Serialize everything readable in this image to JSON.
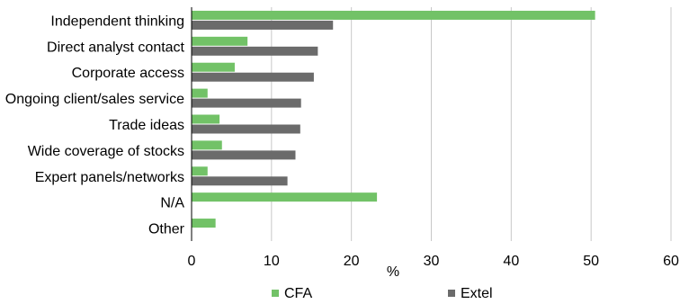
{
  "chart_data": {
    "type": "bar",
    "orientation": "horizontal",
    "categories": [
      "Independent thinking",
      "Direct analyst contact",
      "Corporate access",
      "Ongoing client/sales service",
      "Trade ideas",
      "Wide coverage of stocks",
      "Expert panels/networks",
      "N/A",
      "Other"
    ],
    "series": [
      {
        "name": "CFA",
        "color": "#72c267",
        "values": [
          50.5,
          7.0,
          5.4,
          2.0,
          3.5,
          3.8,
          2.0,
          23.2,
          3.0
        ]
      },
      {
        "name": "Extel",
        "color": "#6b6b6b",
        "values": [
          17.7,
          15.8,
          15.3,
          13.7,
          13.6,
          13.0,
          12.0,
          null,
          null
        ]
      }
    ],
    "xlabel": "%",
    "xlim": [
      0,
      60
    ],
    "xticks": [
      "0",
      "10",
      "20",
      "30",
      "40",
      "50",
      "60"
    ],
    "grid": true,
    "legend": "bottom"
  }
}
